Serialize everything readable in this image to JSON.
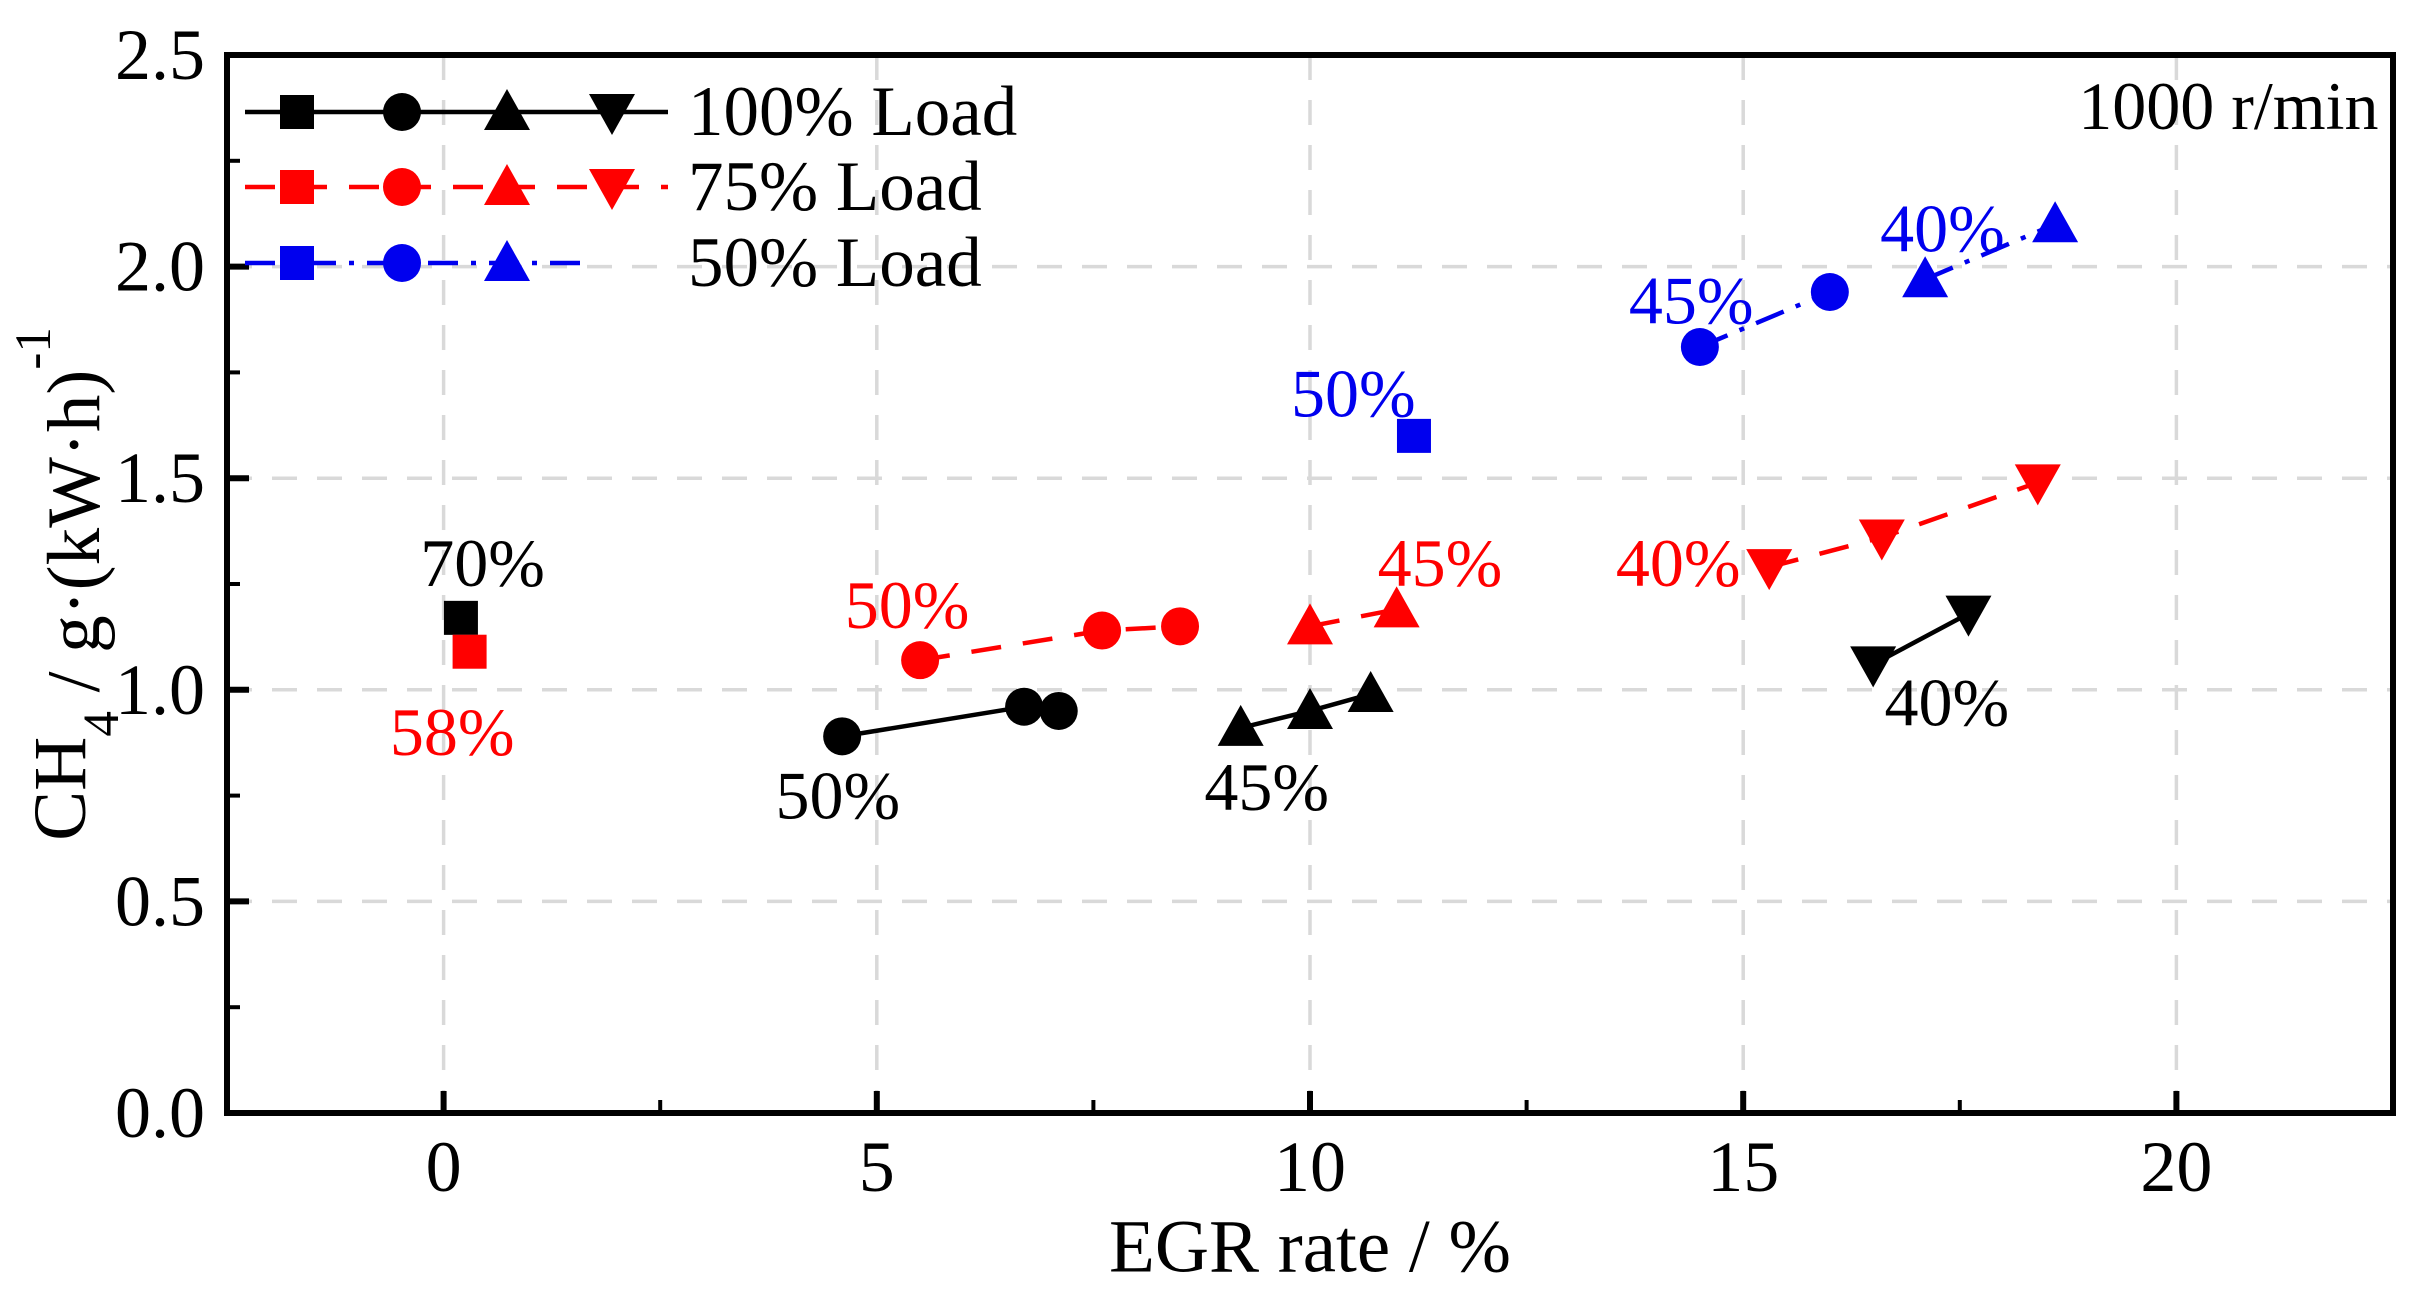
{
  "chart_data": {
    "type": "scatter",
    "title": "",
    "xlabel": "EGR rate / %",
    "ylabel": "CH₄ / g·(kW·h)⁻¹",
    "ylabel_rich": [
      {
        "t": "CH"
      },
      {
        "t": "4",
        "script": "sub"
      },
      {
        "t": " / g·(kW·h)"
      },
      {
        "t": "-1",
        "script": "super"
      }
    ],
    "corner_note": "1000 r/min",
    "xlim": [
      -2.5,
      22.5
    ],
    "ylim": [
      0,
      2.5
    ],
    "xticks": [
      0,
      5,
      10,
      15,
      20
    ],
    "xticks_minor": [
      2.5,
      7.5,
      12.5,
      17.5
    ],
    "yticks": [
      0,
      0.5,
      1.0,
      1.5,
      2.0,
      2.5
    ],
    "yticks_minor": [
      0.25,
      0.75,
      1.25,
      1.75,
      2.25
    ],
    "grid": true,
    "grid_color": "#d9d9d9",
    "axis_color": "#000000",
    "legend_position": "top-left",
    "legend": [
      {
        "label": "100% Load",
        "color": "#000000",
        "linestyle": "solid",
        "markers": [
          "square",
          "circle",
          "triangle-up",
          "triangle-down"
        ]
      },
      {
        "label": "75% Load",
        "color": "#ff0000",
        "linestyle": "dashed",
        "markers": [
          "square",
          "circle",
          "triangle-up",
          "triangle-down"
        ]
      },
      {
        "label": "50% Load",
        "color": "#0000ee",
        "linestyle": "dashdot",
        "markers": [
          "square",
          "circle",
          "triangle-up"
        ]
      }
    ],
    "series": [
      {
        "name": "100% Load",
        "color": "#000000",
        "linestyle": "solid",
        "groups": [
          {
            "label": "70%",
            "marker": "square",
            "points": [
              [
                0.2,
                1.17
              ]
            ]
          },
          {
            "label": "50%",
            "marker": "circle",
            "points": [
              [
                4.6,
                0.89
              ],
              [
                6.7,
                0.96
              ],
              [
                7.1,
                0.95
              ]
            ]
          },
          {
            "label": "45%",
            "marker": "triangle-up",
            "points": [
              [
                9.2,
                0.91
              ],
              [
                10.0,
                0.95
              ],
              [
                10.7,
                0.99
              ]
            ]
          },
          {
            "label": "40%",
            "marker": "triangle-down",
            "points": [
              [
                16.5,
                1.06
              ],
              [
                17.6,
                1.18
              ]
            ]
          }
        ]
      },
      {
        "name": "75% Load",
        "color": "#ff0000",
        "linestyle": "dashed",
        "groups": [
          {
            "label": "58%",
            "marker": "square",
            "points": [
              [
                0.3,
                1.09
              ]
            ]
          },
          {
            "label": "50%",
            "marker": "circle",
            "points": [
              [
                5.5,
                1.07
              ],
              [
                7.6,
                1.14
              ],
              [
                8.5,
                1.15
              ]
            ]
          },
          {
            "label": "45%",
            "marker": "triangle-up",
            "points": [
              [
                10.0,
                1.15
              ],
              [
                11.0,
                1.19
              ]
            ]
          },
          {
            "label": "40%",
            "marker": "triangle-down",
            "points": [
              [
                15.3,
                1.29
              ],
              [
                16.6,
                1.36
              ],
              [
                18.4,
                1.49
              ]
            ]
          }
        ]
      },
      {
        "name": "50% Load",
        "color": "#0000ee",
        "linestyle": "dashdot",
        "groups": [
          {
            "label": "50%",
            "marker": "square",
            "points": [
              [
                11.2,
                1.6
              ]
            ]
          },
          {
            "label": "45%",
            "marker": "circle",
            "points": [
              [
                14.5,
                1.81
              ],
              [
                16.0,
                1.94
              ]
            ]
          },
          {
            "label": "40%",
            "marker": "triangle-up",
            "points": [
              [
                17.1,
                1.97
              ],
              [
                18.6,
                2.1
              ]
            ]
          }
        ]
      }
    ],
    "annotations": [
      {
        "text": "70%",
        "color": "#000000",
        "x": 0.45,
        "y": 1.3
      },
      {
        "text": "58%",
        "color": "#ff0000",
        "x": 0.1,
        "y": 0.9
      },
      {
        "text": "50%",
        "color": "#000000",
        "x": 4.55,
        "y": 0.75
      },
      {
        "text": "50%",
        "color": "#ff0000",
        "x": 5.35,
        "y": 1.2
      },
      {
        "text": "45%",
        "color": "#000000",
        "x": 9.5,
        "y": 0.77
      },
      {
        "text": "45%",
        "color": "#ff0000",
        "x": 11.5,
        "y": 1.3
      },
      {
        "text": "40%",
        "color": "#000000",
        "x": 17.35,
        "y": 0.97
      },
      {
        "text": "40%",
        "color": "#ff0000",
        "x": 14.25,
        "y": 1.3
      },
      {
        "text": "50%",
        "color": "#0000ee",
        "x": 10.5,
        "y": 1.7
      },
      {
        "text": "45%",
        "color": "#0000ee",
        "x": 14.4,
        "y": 1.92
      },
      {
        "text": "40%",
        "color": "#0000ee",
        "x": 17.3,
        "y": 2.09
      },
      {
        "text": "1000 r/min",
        "color": "#000000",
        "x": 20.6,
        "y": 2.38
      }
    ]
  }
}
